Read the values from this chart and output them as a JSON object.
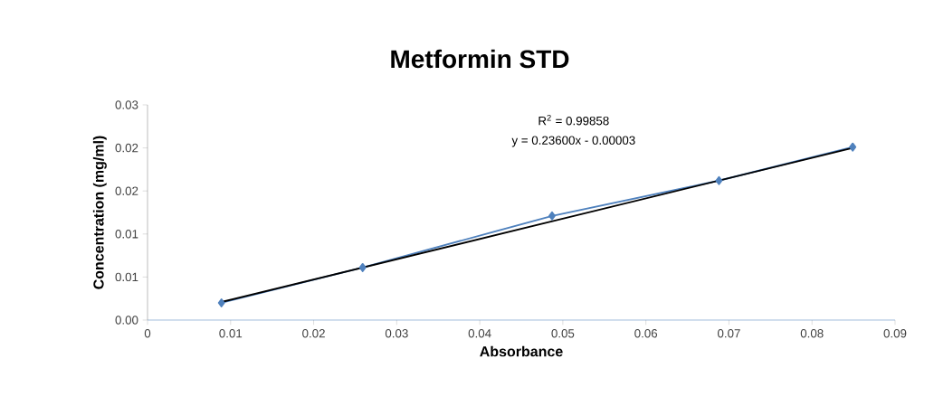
{
  "chart_data": {
    "type": "line",
    "title": "Metformin STD",
    "xlabel": "Absorbance",
    "ylabel": "Concentration  (mg/ml)",
    "annotations": [
      "R$^{2}$ = 0.99858",
      "y = 0.23600x - 0.00003"
    ],
    "series": [
      {
        "color": "#4f81bd",
        "marker": "diamond",
        "x": [
          0.0089,
          0.0259,
          0.0487,
          0.0688,
          0.0849
        ],
        "values": [
          0.002,
          0.0061,
          0.0121,
          0.0162,
          0.0201
        ]
      },
      {
        "color": "#000000",
        "marker": "none",
        "x": [
          0.0089,
          0.0849
        ],
        "values": [
          0.0021,
          0.02
        ]
      }
    ],
    "xlim": [
      0,
      0.09
    ],
    "ylim": [
      0,
      0.025
    ],
    "xticks": [
      0,
      0.01,
      0.02,
      0.03,
      0.04,
      0.05,
      0.06,
      0.07,
      0.08,
      0.09
    ],
    "yticks": [
      {
        "value": 0,
        "label": "0.00"
      },
      {
        "value": 0.005,
        "label": "0.01"
      },
      {
        "value": 0.01,
        "label": "0.01"
      },
      {
        "value": 0.015,
        "label": "0.02"
      },
      {
        "value": 0.02,
        "label": "0.02"
      },
      {
        "value": 0.025,
        "label": "0.03"
      }
    ],
    "grid": false
  }
}
